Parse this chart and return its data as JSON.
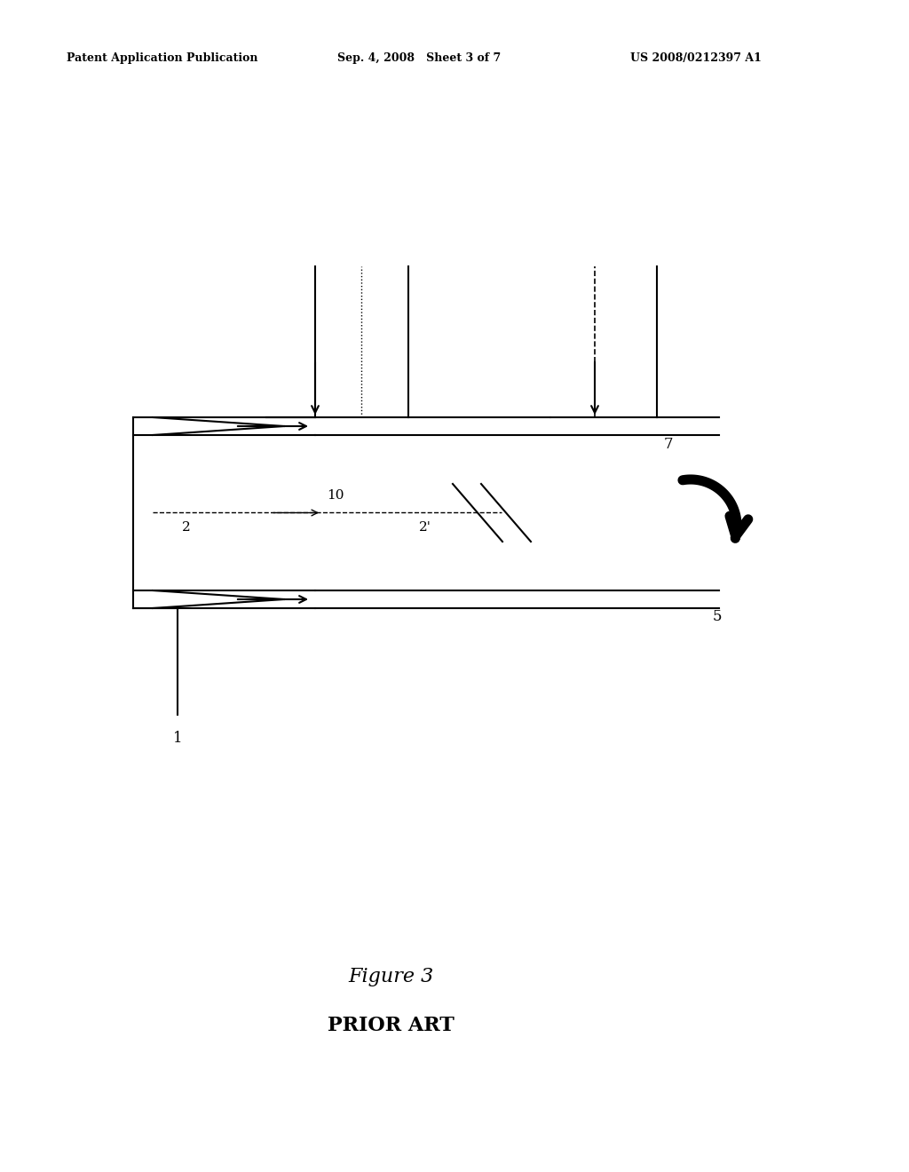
{
  "bg_color": "#ffffff",
  "header_left": "Patent Application Publication",
  "header_mid": "Sep. 4, 2008   Sheet 3 of 7",
  "header_right": "US 2008/0212397 A1",
  "figure_label": "Figure 3",
  "figure_sublabel": "PRIOR ART",
  "label_1": "1",
  "label_2": "2",
  "label_2prime": "2'",
  "label_5": "5",
  "label_7": "7",
  "label_10": "10"
}
